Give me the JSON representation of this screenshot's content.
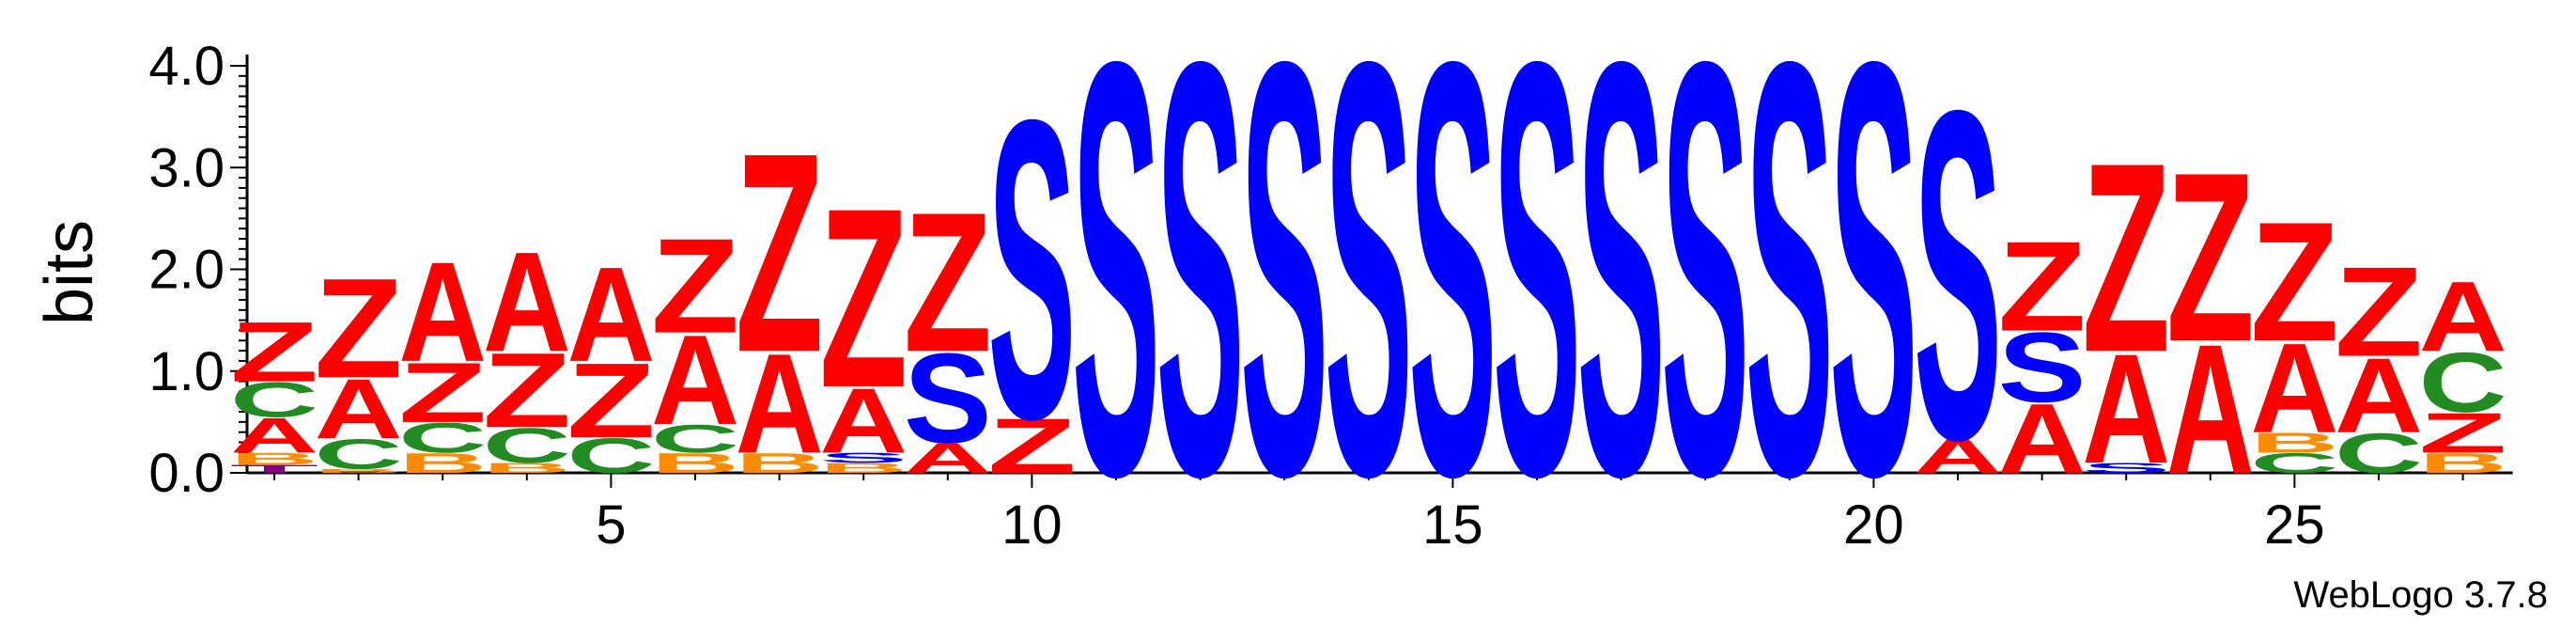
{
  "chart_data": {
    "type": "sequence-logo",
    "ylabel": "bits",
    "ylim": [
      0,
      4
    ],
    "y_ticks": [
      "0.0",
      "1.0",
      "2.0",
      "3.0",
      "4.0"
    ],
    "x_ticks": [
      "5",
      "10",
      "15",
      "20",
      "25"
    ],
    "x_tick_values": [
      5,
      10,
      15,
      20,
      25
    ],
    "positions": [
      1,
      2,
      3,
      4,
      5,
      6,
      7,
      8,
      9,
      10,
      11,
      12,
      13,
      14,
      15,
      16,
      17,
      18,
      19,
      20,
      21,
      22,
      23,
      24,
      25,
      26,
      27
    ],
    "colors": {
      "Z": "#ff0000",
      "A": "#ff0000",
      "S": "#0000ff",
      "C": "#228b22",
      "B": "#ff8c00",
      "T": "#800080"
    },
    "stacks": [
      [
        [
          "T",
          0.08
        ],
        [
          "B",
          0.12
        ],
        [
          "A",
          0.35
        ],
        [
          "C",
          0.35
        ],
        [
          "Z",
          0.6
        ]
      ],
      [
        [
          "B",
          0.04
        ],
        [
          "C",
          0.3
        ],
        [
          "A",
          0.6
        ],
        [
          "Z",
          1.0
        ]
      ],
      [
        [
          "B",
          0.2
        ],
        [
          "C",
          0.3
        ],
        [
          "Z",
          0.6
        ],
        [
          "A",
          1.0
        ]
      ],
      [
        [
          "B",
          0.1
        ],
        [
          "C",
          0.35
        ],
        [
          "Z",
          0.75
        ],
        [
          "A",
          1.0
        ]
      ],
      [
        [
          "C",
          0.35
        ],
        [
          "Z",
          0.75
        ],
        [
          "A",
          0.95
        ]
      ],
      [
        [
          "B",
          0.2
        ],
        [
          "C",
          0.28
        ],
        [
          "A",
          0.9
        ],
        [
          "Z",
          0.95
        ]
      ],
      [
        [
          "B",
          0.2
        ],
        [
          "A",
          1.0
        ],
        [
          "Z",
          2.0
        ]
      ],
      [
        [
          "B",
          0.1
        ],
        [
          "S",
          0.1
        ],
        [
          "A",
          0.65
        ],
        [
          "Z",
          1.8
        ]
      ],
      [
        [
          "A",
          0.3
        ],
        [
          "S",
          0.9
        ],
        [
          "Z",
          1.4
        ]
      ],
      [
        [
          "Z",
          0.55
        ],
        [
          "S",
          3.0
        ]
      ],
      [
        [
          "S",
          4.15
        ]
      ],
      [
        [
          "S",
          4.15
        ]
      ],
      [
        [
          "S",
          4.15
        ]
      ],
      [
        [
          "S",
          4.15
        ]
      ],
      [
        [
          "S",
          4.15
        ]
      ],
      [
        [
          "S",
          4.15
        ]
      ],
      [
        [
          "S",
          4.15
        ]
      ],
      [
        [
          "S",
          4.15
        ]
      ],
      [
        [
          "S",
          4.15
        ]
      ],
      [
        [
          "S",
          4.15
        ]
      ],
      [
        [
          "A",
          0.35
        ],
        [
          "S",
          3.3
        ]
      ],
      [
        [
          "A",
          0.7
        ],
        [
          "S",
          0.7
        ],
        [
          "Z",
          0.9
        ]
      ],
      [
        [
          "S",
          0.1
        ],
        [
          "A",
          1.1
        ],
        [
          "Z",
          1.9
        ]
      ],
      [
        [
          "A",
          1.3
        ],
        [
          "Z",
          1.7
        ]
      ],
      [
        [
          "C",
          0.2
        ],
        [
          "B",
          0.2
        ],
        [
          "A",
          0.9
        ],
        [
          "Z",
          1.2
        ]
      ],
      [
        [
          "C",
          0.4
        ],
        [
          "A",
          0.75
        ],
        [
          "Z",
          0.9
        ]
      ],
      [
        [
          "B",
          0.2
        ],
        [
          "Z",
          0.4
        ],
        [
          "C",
          0.6
        ],
        [
          "A",
          0.7
        ]
      ]
    ]
  },
  "credit": "WebLogo 3.7.8"
}
